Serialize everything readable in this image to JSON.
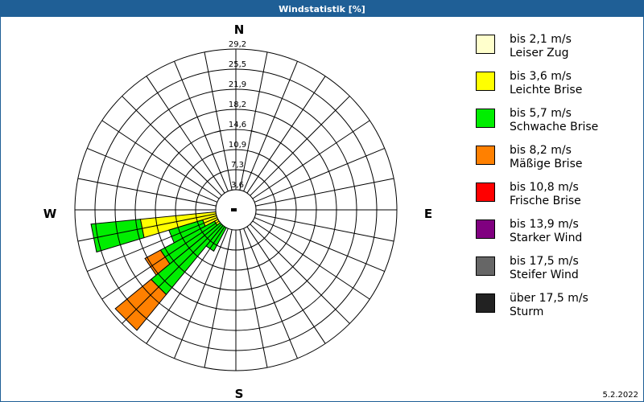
{
  "window": {
    "title": "Windstatistik [%]",
    "date": "5.2.2022"
  },
  "compass": {
    "N": "N",
    "E": "E",
    "S": "S",
    "W": "W"
  },
  "legend": [
    {
      "range": "bis 2,1 m/s",
      "name": "Leiser Zug",
      "color": "#ffffcc"
    },
    {
      "range": "bis 3,6 m/s",
      "name": "Leichte Brise",
      "color": "#ffff00"
    },
    {
      "range": "bis 5,7 m/s",
      "name": "Schwache Brise",
      "color": "#00ee00"
    },
    {
      "range": "bis 8,2 m/s",
      "name": "Mäßige Brise",
      "color": "#ff8000"
    },
    {
      "range": "bis 10,8 m/s",
      "name": "Frische Brise",
      "color": "#ff0000"
    },
    {
      "range": "bis 13,9 m/s",
      "name": "Starker Wind",
      "color": "#800080"
    },
    {
      "range": "bis 17,5 m/s",
      "name": "Steifer Wind",
      "color": "#666666"
    },
    {
      "range": "über 17,5 m/s",
      "name": "Sturm",
      "color": "#222222"
    }
  ],
  "chart_data": {
    "type": "wind-rose",
    "title": "Windstatistik [%]",
    "unit": "%",
    "sectors": 32,
    "sector_width_deg": 11.25,
    "radial_ticks": [
      "3,6",
      "7,3",
      "10,9",
      "14,6",
      "18,2",
      "21,9",
      "25,5",
      "29,2"
    ],
    "radial_max": 29.2,
    "series_names": [
      "bis 2,1 m/s",
      "bis 3,6 m/s",
      "bis 5,7 m/s",
      "bis 8,2 m/s",
      "bis 10,8 m/s",
      "bis 13,9 m/s",
      "bis 17,5 m/s",
      "über 17,5 m/s"
    ],
    "directions": [
      {
        "angle_deg": 258.75,
        "cumulative": [
          0,
          17.4,
          26.4,
          26.4
        ]
      },
      {
        "angle_deg": 247.5,
        "cumulative": [
          0,
          6.3,
          12.7,
          12.7
        ]
      },
      {
        "angle_deg": 236.25,
        "cumulative": [
          0,
          4.4,
          15.5,
          18.7
        ]
      },
      {
        "angle_deg": 225.0,
        "cumulative": [
          0,
          0,
          19.9,
          28.3
        ]
      },
      {
        "angle_deg": 213.75,
        "cumulative": [
          0,
          0,
          8.5,
          8.5
        ]
      }
    ],
    "segment_colors": [
      "#ffffcc",
      "#ffff00",
      "#00ee00",
      "#ff8000"
    ]
  }
}
